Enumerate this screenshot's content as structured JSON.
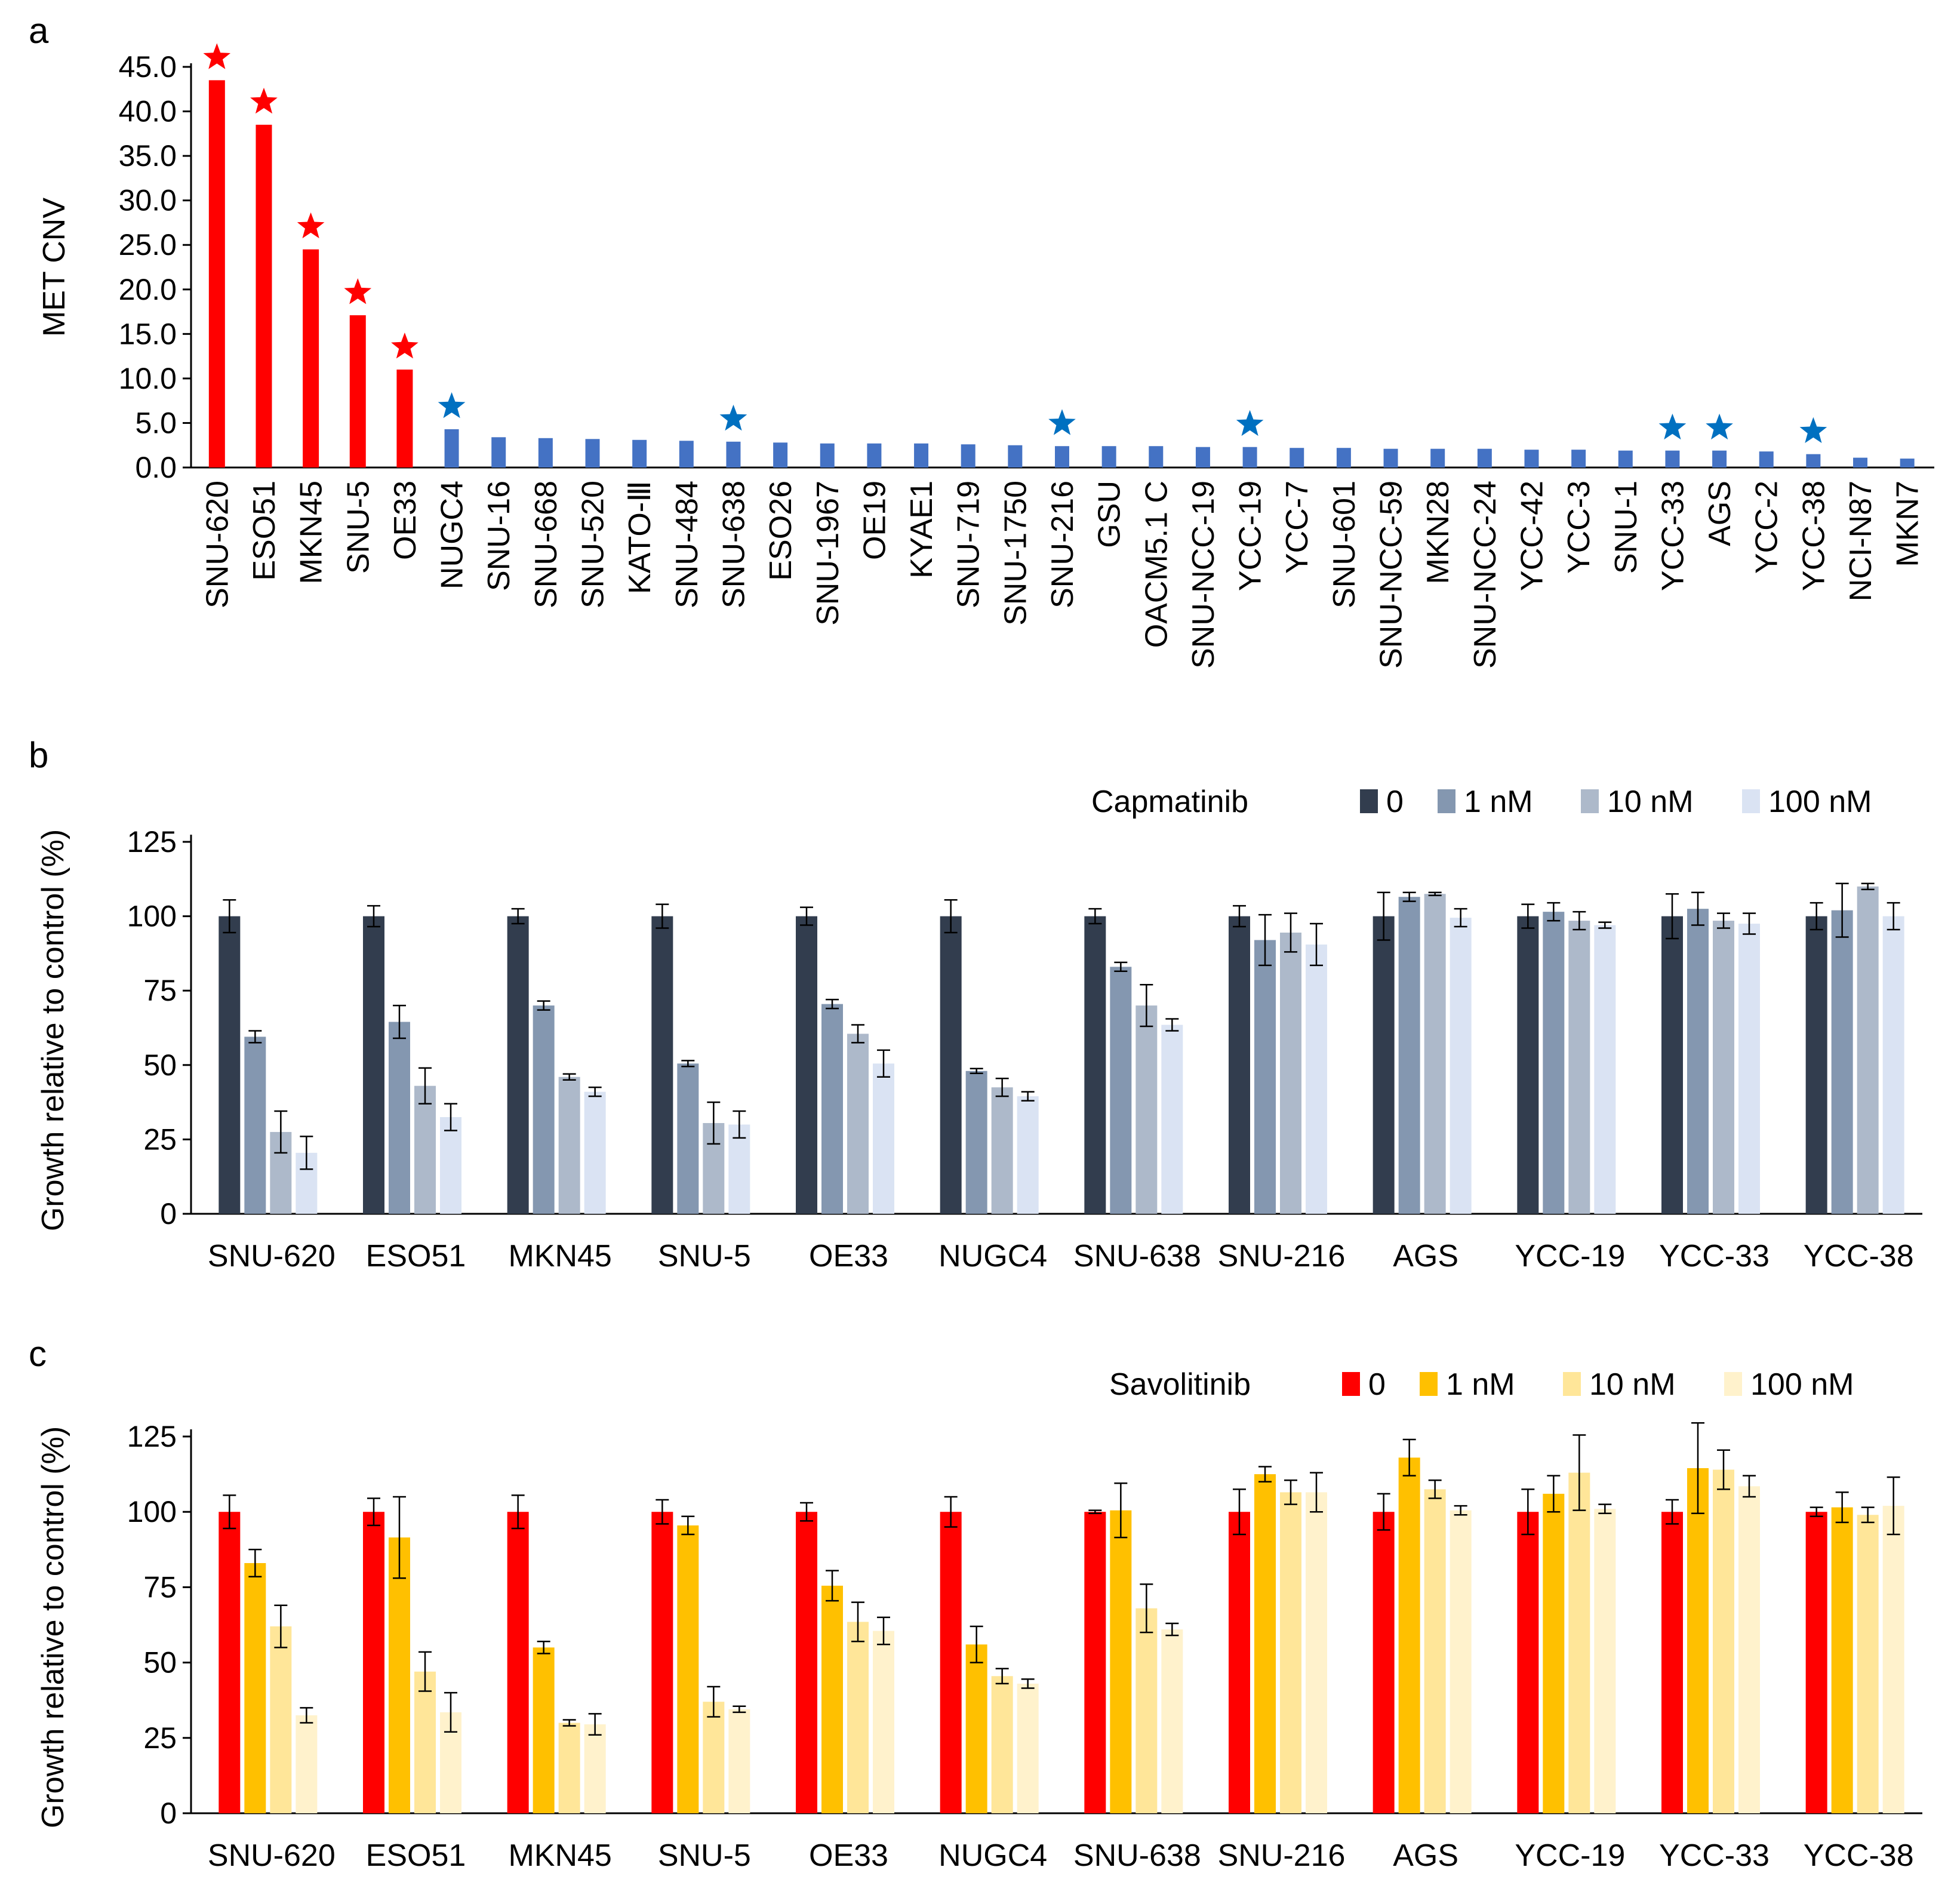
{
  "chart_data": [
    {
      "panel": "a",
      "type": "bar",
      "title": "",
      "xlabel": "",
      "ylabel": "MET CNV",
      "ylim": [
        0,
        45
      ],
      "yticks": [
        "0.0",
        "5.0",
        "10.0",
        "15.0",
        "20.0",
        "25.0",
        "30.0",
        "35.0",
        "40.0",
        "45.0"
      ],
      "categories": [
        "SNU-620",
        "ESO51",
        "MKN45",
        "SNU-5",
        "OE33",
        "NUGC4",
        "SNU-16",
        "SNU-668",
        "SNU-520",
        "KATO-Ⅲ",
        "SNU-484",
        "SNU-638",
        "ESO26",
        "SNU-1967",
        "OE19",
        "KYAE1",
        "SNU-719",
        "SNU-1750",
        "SNU-216",
        "GSU",
        "OACM5.1 C",
        "SNU-NCC-19",
        "YCC-19",
        "YCC-7",
        "SNU-601",
        "SNU-NCC-59",
        "MKN28",
        "SNU-NCC-24",
        "YCC-42",
        "YCC-3",
        "SNU-1",
        "YCC-33",
        "AGS",
        "YCC-2",
        "YCC-38",
        "NCI-N87",
        "MKN7"
      ],
      "values": [
        43.5,
        38.5,
        24.5,
        17.1,
        11.0,
        4.3,
        3.4,
        3.3,
        3.2,
        3.1,
        3.0,
        2.9,
        2.8,
        2.7,
        2.7,
        2.7,
        2.6,
        2.5,
        2.4,
        2.4,
        2.4,
        2.3,
        2.3,
        2.2,
        2.2,
        2.1,
        2.1,
        2.1,
        2.0,
        2.0,
        1.9,
        1.9,
        1.9,
        1.8,
        1.5,
        1.1,
        1.0
      ],
      "bar_colors": {
        "high": "#ff0000",
        "low": "#4472c4"
      },
      "high_count": 5,
      "star_indices": [
        0,
        1,
        2,
        3,
        4,
        5,
        11,
        18,
        22,
        31,
        32,
        34
      ],
      "star_colors": {
        "high": "#ff0000",
        "low": "#0070c0"
      },
      "grid": false,
      "legend": "none"
    },
    {
      "panel": "b",
      "type": "bar",
      "title": "",
      "xlabel": "",
      "ylabel": "Growth relative to control (%)",
      "ylim": [
        0,
        125
      ],
      "yticks": [
        "0",
        "25",
        "50",
        "75",
        "100",
        "125"
      ],
      "legend_title": "Capmatinib",
      "legend": "top-right",
      "categories": [
        "SNU-620",
        "ESO51",
        "MKN45",
        "SNU-5",
        "OE33",
        "NUGC4",
        "SNU-638",
        "SNU-216",
        "AGS",
        "YCC-19",
        "YCC-33",
        "YCC-38"
      ],
      "series": [
        {
          "name": "0",
          "color": "#323d4e",
          "values": [
            100,
            100,
            100,
            100,
            100,
            100,
            100,
            100,
            100,
            100,
            100,
            100
          ],
          "errors": [
            5.5,
            3.5,
            2.5,
            4,
            3,
            5.5,
            2.5,
            3.5,
            8,
            4,
            7.5,
            4.5
          ]
        },
        {
          "name": "1 nM",
          "color": "#8497b0",
          "values": [
            59.5,
            64.5,
            70,
            50.5,
            70.5,
            48,
            83,
            92,
            106.5,
            101.5,
            102.5,
            102
          ],
          "errors": [
            2,
            5.5,
            1.5,
            1,
            1.5,
            0.8,
            1.5,
            8.5,
            1.5,
            3,
            5.5,
            9
          ]
        },
        {
          "name": "10 nM",
          "color": "#adb9ca",
          "values": [
            27.5,
            43,
            46,
            30.5,
            60.5,
            42.5,
            70,
            94.5,
            107.5,
            98.5,
            98.5,
            110
          ],
          "errors": [
            7,
            6,
            1,
            7,
            3,
            3,
            7,
            6.5,
            0.5,
            3,
            2.5,
            1
          ]
        },
        {
          "name": "100 nM",
          "color": "#dae3f3",
          "values": [
            20.5,
            32.5,
            41,
            30,
            50.5,
            39.5,
            63.5,
            90.5,
            99.5,
            97,
            97.5,
            100
          ],
          "errors": [
            5.5,
            4.5,
            1.5,
            4.5,
            4.5,
            1.5,
            2,
            7,
            3,
            1,
            3.5,
            4.5
          ]
        }
      ],
      "grid": false
    },
    {
      "panel": "c",
      "type": "bar",
      "title": "",
      "xlabel": "",
      "ylabel": "Growth relative to control (%)",
      "ylim": [
        0,
        125
      ],
      "yticks": [
        "0",
        "25",
        "50",
        "75",
        "100",
        "125"
      ],
      "legend_title": "Savolitinib",
      "legend": "top-right",
      "categories": [
        "SNU-620",
        "ESO51",
        "MKN45",
        "SNU-5",
        "OE33",
        "NUGC4",
        "SNU-638",
        "SNU-216",
        "AGS",
        "YCC-19",
        "YCC-33",
        "YCC-38"
      ],
      "series": [
        {
          "name": "0",
          "color": "#ff0000",
          "values": [
            100,
            100,
            100,
            100,
            100,
            100,
            100,
            100,
            100,
            100,
            100,
            100
          ],
          "errors": [
            5.5,
            4.5,
            5.5,
            4,
            3,
            5,
            0.5,
            7.5,
            6,
            7.5,
            4,
            1.5
          ]
        },
        {
          "name": "1 nM",
          "color": "#ffc000",
          "values": [
            83,
            91.5,
            55,
            95.5,
            75.5,
            56,
            100.5,
            112.5,
            118,
            106,
            114.5,
            101.5
          ],
          "errors": [
            4.5,
            13.5,
            2,
            3,
            5,
            6,
            9,
            2.5,
            6,
            6,
            15,
            5
          ]
        },
        {
          "name": "10 nM",
          "color": "#ffe699",
          "values": [
            62,
            47,
            30,
            37,
            63.5,
            45.5,
            68,
            106.5,
            107.5,
            113,
            114,
            99
          ],
          "errors": [
            7,
            6.5,
            1,
            5,
            6.5,
            2.5,
            8,
            4,
            3,
            12.5,
            6.5,
            2.5
          ]
        },
        {
          "name": "100 nM",
          "color": "#fff2cc",
          "values": [
            32.5,
            33.5,
            29.5,
            34.5,
            60.5,
            43,
            61,
            106.5,
            100.5,
            101,
            108.5,
            102
          ],
          "errors": [
            2.5,
            6.5,
            3.5,
            1,
            4.5,
            1.5,
            2,
            6.5,
            1.5,
            1.5,
            3.5,
            9.5
          ]
        }
      ],
      "grid": false
    }
  ]
}
